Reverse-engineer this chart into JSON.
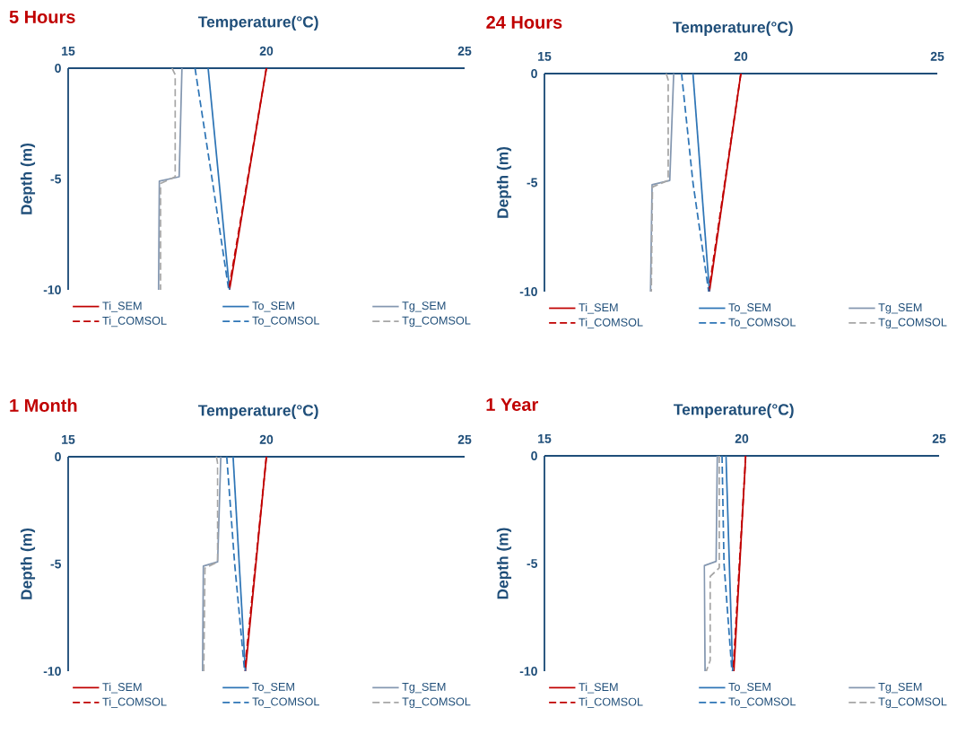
{
  "chart_data": [
    {
      "type": "line",
      "title": "5 Hours",
      "xlabel": "Temperature(°C)",
      "ylabel": "Depth (m)",
      "xlim": [
        15,
        25
      ],
      "xticks": [
        15,
        20,
        25
      ],
      "ylim": [
        -10,
        0
      ],
      "yticks": [
        -10,
        -5,
        0
      ],
      "legend": "bottom",
      "series": [
        {
          "name": "Ti_SEM",
          "color": "#c00000",
          "line_style": "solid",
          "x": [
            20.0,
            19.07
          ],
          "values": [
            0,
            -10
          ]
        },
        {
          "name": "To_SEM",
          "color": "#2e75b6",
          "line_style": "solid",
          "x": [
            18.53,
            19.07
          ],
          "values": [
            0,
            -10
          ]
        },
        {
          "name": "Tg_SEM",
          "color": "#8497b0",
          "line_style": "solid",
          "x": [
            17.87,
            17.8,
            17.3,
            17.28
          ],
          "values": [
            0,
            -4.9,
            -5.1,
            -10
          ]
        },
        {
          "name": "Ti_COMSOL",
          "color": "#c00000",
          "line_style": "dashed",
          "x": [
            20.0,
            19.05
          ],
          "values": [
            0,
            -10
          ]
        },
        {
          "name": "To_COMSOL",
          "color": "#2e75b6",
          "line_style": "dashed",
          "x": [
            18.2,
            18.63,
            19.05
          ],
          "values": [
            0,
            -5,
            -10
          ]
        },
        {
          "name": "Tg_COMSOL",
          "color": "#a6a6a6",
          "line_style": "dashed",
          "x": [
            17.62,
            17.7,
            17.7,
            17.33,
            17.33
          ],
          "values": [
            0,
            -0.3,
            -4.9,
            -5.2,
            -10
          ]
        }
      ]
    },
    {
      "type": "line",
      "title": "24 Hours",
      "xlabel": "Temperature(°C)",
      "ylabel": "Depth (m)",
      "xlim": [
        15,
        25
      ],
      "xticks": [
        15,
        20,
        25
      ],
      "ylim": [
        -10,
        0
      ],
      "yticks": [
        -10,
        -5,
        0
      ],
      "legend": "bottom",
      "series": [
        {
          "name": "Ti_SEM",
          "color": "#c00000",
          "line_style": "solid",
          "x": [
            20.0,
            19.2
          ],
          "values": [
            0,
            -10
          ]
        },
        {
          "name": "To_SEM",
          "color": "#2e75b6",
          "line_style": "solid",
          "x": [
            18.78,
            19.2
          ],
          "values": [
            0,
            -10
          ]
        },
        {
          "name": "Tg_SEM",
          "color": "#8497b0",
          "line_style": "solid",
          "x": [
            18.29,
            18.19,
            17.74,
            17.7
          ],
          "values": [
            0,
            -4.9,
            -5.1,
            -10
          ]
        },
        {
          "name": "Ti_COMSOL",
          "color": "#c00000",
          "line_style": "dashed",
          "x": [
            20.0,
            19.18
          ],
          "values": [
            0,
            -10
          ]
        },
        {
          "name": "To_COMSOL",
          "color": "#2e75b6",
          "line_style": "dashed",
          "x": [
            18.49,
            18.78,
            19.18
          ],
          "values": [
            0,
            -5,
            -10
          ]
        },
        {
          "name": "Tg_COMSOL",
          "color": "#a6a6a6",
          "line_style": "dashed",
          "x": [
            18.1,
            18.15,
            18.15,
            17.75,
            17.72
          ],
          "values": [
            0,
            -0.3,
            -4.9,
            -5.2,
            -10
          ]
        }
      ]
    },
    {
      "type": "line",
      "title": "1 Month",
      "xlabel": "Temperature(°C)",
      "ylabel": "Depth (m)",
      "xlim": [
        15,
        25
      ],
      "xticks": [
        15,
        20,
        25
      ],
      "ylim": [
        -10,
        0
      ],
      "yticks": [
        -10,
        -5,
        0
      ],
      "legend": "bottom",
      "series": [
        {
          "name": "Ti_SEM",
          "color": "#c00000",
          "line_style": "solid",
          "x": [
            20.0,
            19.47
          ],
          "values": [
            0,
            -10
          ]
        },
        {
          "name": "To_SEM",
          "color": "#2e75b6",
          "line_style": "solid",
          "x": [
            19.16,
            19.47
          ],
          "values": [
            0,
            -10
          ]
        },
        {
          "name": "Tg_SEM",
          "color": "#8497b0",
          "line_style": "solid",
          "x": [
            18.85,
            18.77,
            18.41,
            18.39
          ],
          "values": [
            0,
            -4.9,
            -5.1,
            -10
          ]
        },
        {
          "name": "Ti_COMSOL",
          "color": "#c00000",
          "line_style": "dashed",
          "x": [
            20.0,
            19.45
          ],
          "values": [
            0,
            -10
          ]
        },
        {
          "name": "To_COMSOL",
          "color": "#2e75b6",
          "line_style": "dashed",
          "x": [
            19.0,
            19.2,
            19.45
          ],
          "values": [
            0,
            -5,
            -10
          ]
        },
        {
          "name": "Tg_COMSOL",
          "color": "#a6a6a6",
          "line_style": "dashed",
          "x": [
            18.74,
            18.77,
            18.77,
            18.45,
            18.42
          ],
          "values": [
            0,
            -0.3,
            -4.9,
            -5.2,
            -10
          ]
        }
      ]
    },
    {
      "type": "line",
      "title": "1 Year",
      "xlabel": "Temperature(°C)",
      "ylabel": "Depth (m)",
      "xlim": [
        15,
        25
      ],
      "xticks": [
        15,
        20,
        25
      ],
      "ylim": [
        -10,
        0
      ],
      "yticks": [
        -10,
        -5,
        0
      ],
      "legend": "bottom",
      "series": [
        {
          "name": "Ti_SEM",
          "color": "#c00000",
          "line_style": "solid",
          "x": [
            20.1,
            19.8
          ],
          "values": [
            0,
            -10
          ]
        },
        {
          "name": "To_SEM",
          "color": "#2e75b6",
          "line_style": "solid",
          "x": [
            19.6,
            19.77
          ],
          "values": [
            0,
            -10
          ]
        },
        {
          "name": "Tg_SEM",
          "color": "#8497b0",
          "line_style": "solid",
          "x": [
            19.38,
            19.35,
            19.05,
            19.07
          ],
          "values": [
            0,
            -4.9,
            -5.1,
            -10
          ]
        },
        {
          "name": "Ti_COMSOL",
          "color": "#c00000",
          "line_style": "dashed",
          "x": [
            20.1,
            19.78
          ],
          "values": [
            0,
            -10
          ]
        },
        {
          "name": "To_COMSOL",
          "color": "#2e75b6",
          "line_style": "dashed",
          "x": [
            19.5,
            19.55,
            19.75
          ],
          "values": [
            0,
            -5,
            -10
          ]
        },
        {
          "name": "Tg_COMSOL",
          "color": "#a6a6a6",
          "line_style": "dashed",
          "x": [
            19.43,
            19.43,
            19.2,
            19.2,
            19.1
          ],
          "values": [
            0,
            -5.2,
            -5.6,
            -9.5,
            -10
          ]
        }
      ]
    }
  ]
}
